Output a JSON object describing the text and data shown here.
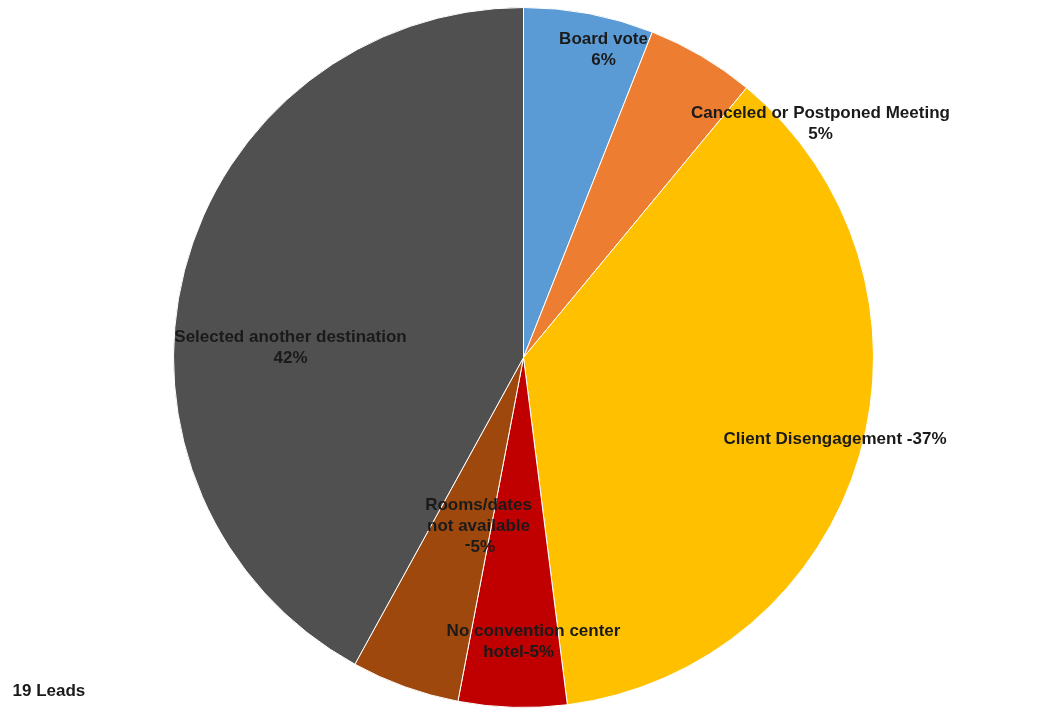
{
  "chart_data": {
    "type": "pie",
    "categories": [
      "Board vote",
      "Canceled or Postponed Meeting",
      "Client Disengagement -",
      "No convention center\nhotel-",
      "Rooms/dates\nnot available\n-",
      "Selected another destination"
    ],
    "values": [
      6,
      5,
      37,
      5,
      5,
      42
    ],
    "colors": [
      "#5b9bd5",
      "#ed7d31",
      "#ffc000",
      "#c00000",
      "#9e480e",
      "#505050"
    ],
    "value_labels": [
      "6%",
      "5%",
      "37%",
      "5%",
      "5%",
      "42%"
    ],
    "annotations": [
      "19 Leads"
    ]
  }
}
